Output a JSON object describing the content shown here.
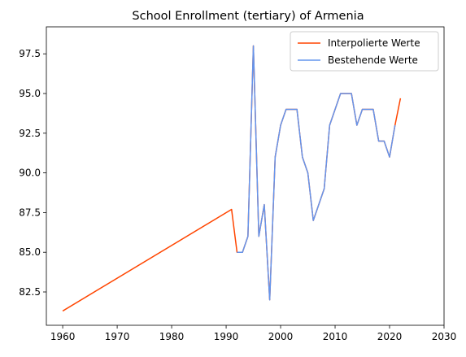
{
  "chart_data": {
    "type": "line",
    "title": "School Enrollment (tertiary) of Armenia",
    "xlabel": "",
    "ylabel": "",
    "xlim": [
      1957,
      2030
    ],
    "ylim": [
      80.4,
      99.2
    ],
    "xticks": [
      1960,
      1970,
      1980,
      1990,
      2000,
      2010,
      2020,
      2030
    ],
    "yticks": [
      82.5,
      85.0,
      87.5,
      90.0,
      92.5,
      95.0,
      97.5
    ],
    "ytick_labels": [
      "82.5",
      "85.0",
      "87.5",
      "90.0",
      "92.5",
      "95.0",
      "97.5"
    ],
    "grid": false,
    "legend_position": "top-right",
    "series": [
      {
        "name": "Interpolierte Werte",
        "color": "#ff4500",
        "x": [
          1960,
          1991,
          1992,
          1993,
          1994,
          1995,
          1996,
          1997,
          1998,
          1999,
          2000,
          2001,
          2002,
          2003,
          2004,
          2005,
          2006,
          2007,
          2008,
          2009,
          2010,
          2011,
          2012,
          2013,
          2014,
          2015,
          2016,
          2017,
          2018,
          2019,
          2020,
          2021,
          2022
        ],
        "y": [
          81.3,
          87.7,
          85,
          85,
          86,
          98,
          86,
          88,
          82,
          91,
          93,
          94,
          94,
          94,
          91,
          90,
          87,
          88,
          89,
          93,
          94,
          95,
          95,
          95,
          93,
          94,
          94,
          94,
          92,
          92,
          91,
          93,
          94.7
        ]
      },
      {
        "name": "Bestehende Werte",
        "color": "#6495ed",
        "x": [
          1992,
          1993,
          1994,
          1995,
          1996,
          1997,
          1998,
          1999,
          2000,
          2001,
          2002,
          2003,
          2004,
          2005,
          2006,
          2007,
          2008,
          2009,
          2010,
          2011,
          2012,
          2013,
          2014,
          2015,
          2016,
          2017,
          2018,
          2019,
          2020,
          2021
        ],
        "y": [
          85,
          85,
          86,
          98,
          86,
          88,
          82,
          91,
          93,
          94,
          94,
          94,
          91,
          90,
          87,
          88,
          89,
          93,
          94,
          95,
          95,
          95,
          93,
          94,
          94,
          94,
          92,
          92,
          91,
          93
        ]
      }
    ]
  }
}
